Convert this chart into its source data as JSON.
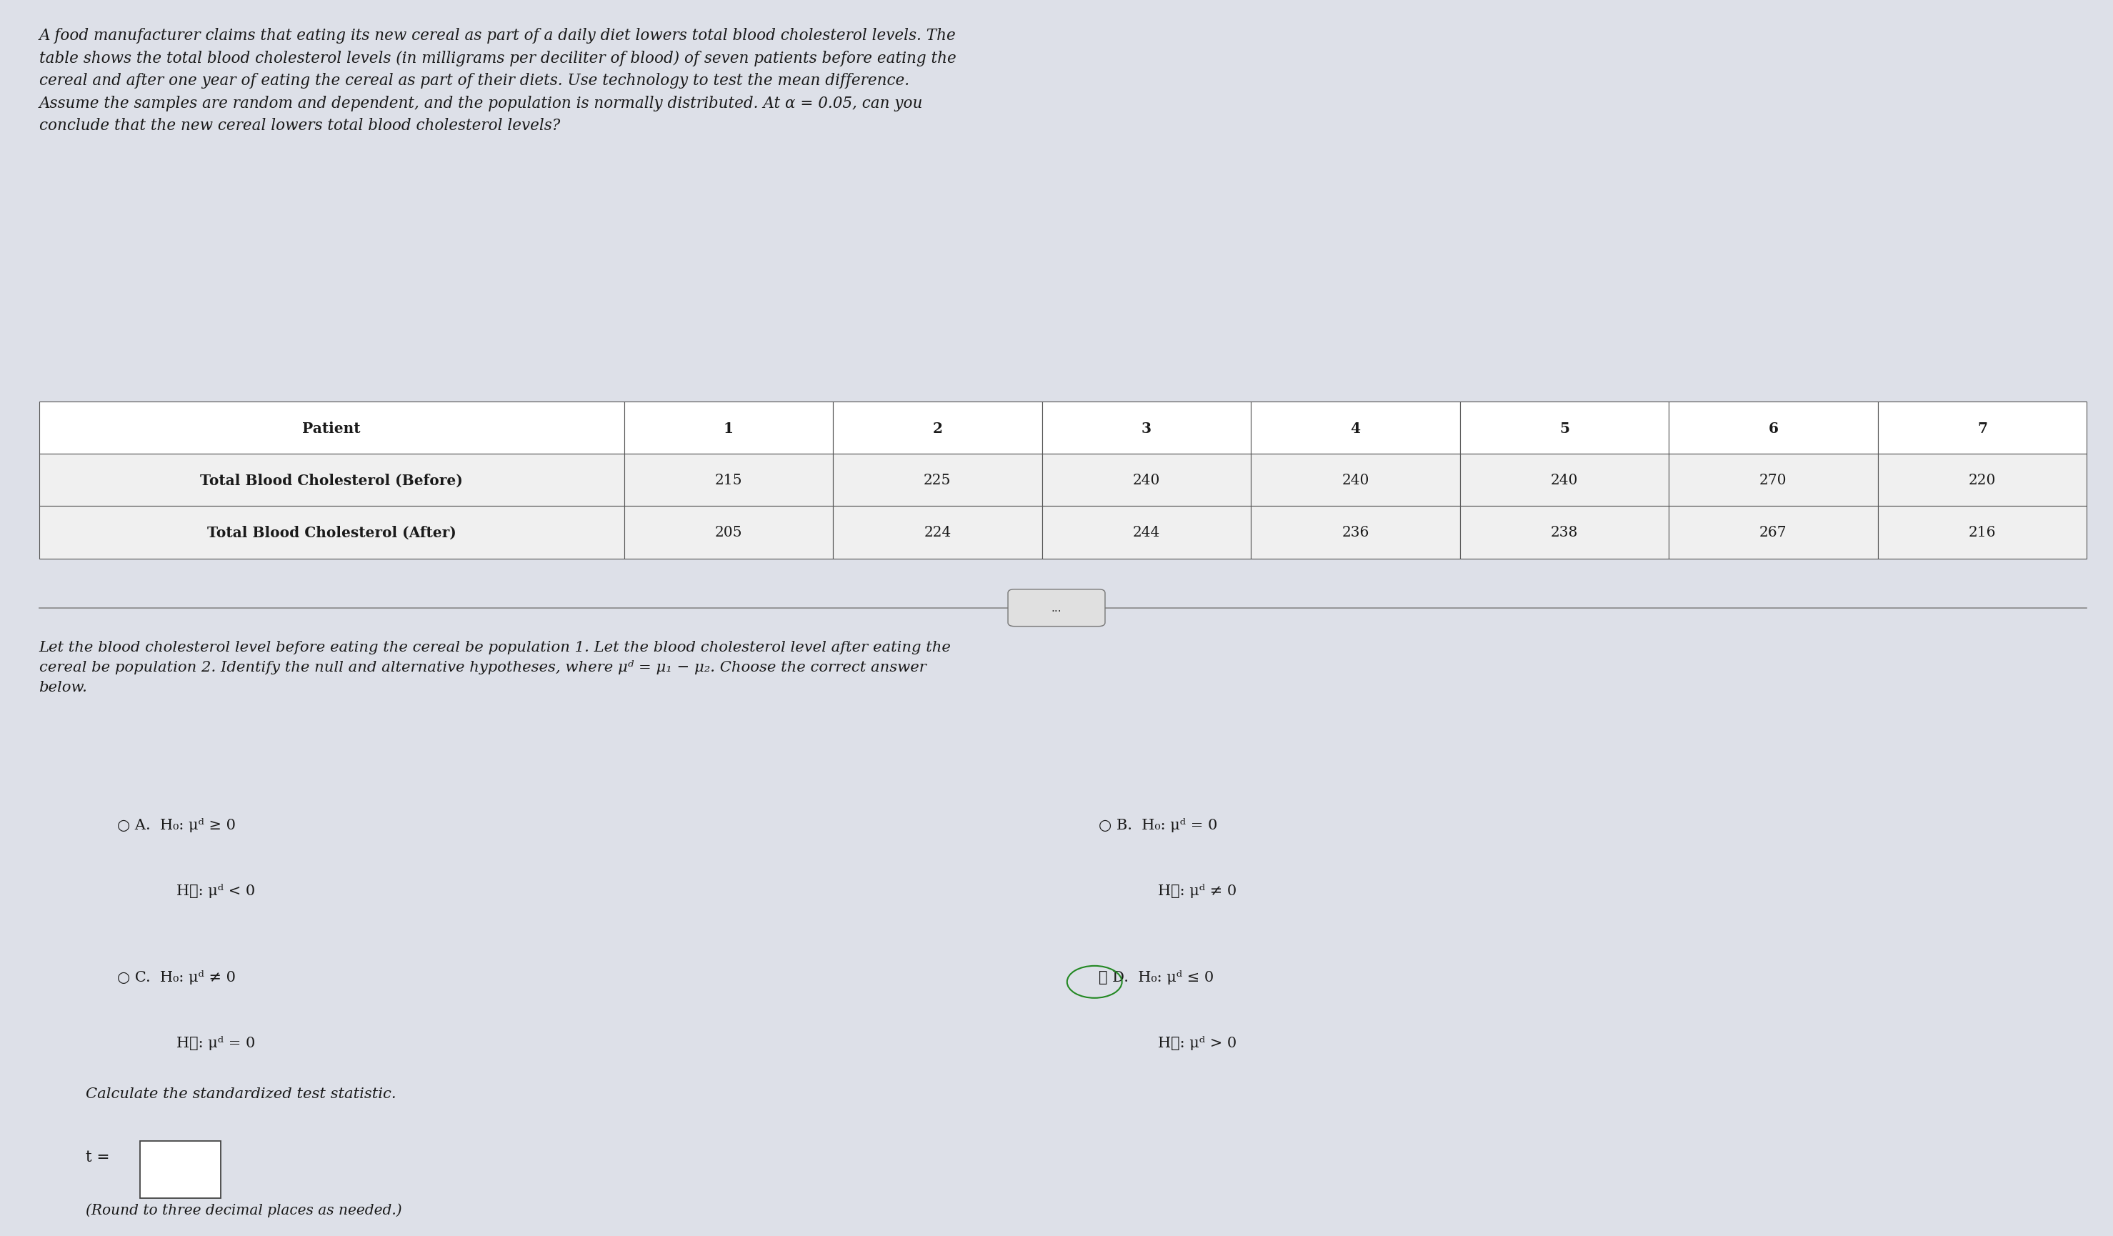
{
  "bg_color": "#dde0e8",
  "title_text": "A food manufacturer claims that eating its new cereal as part of a daily diet lowers total blood cholesterol levels. The\ntable shows the total blood cholesterol levels (in milligrams per deciliter of blood) of seven patients before eating the\ncereal and after one year of eating the cereal as part of their diets. Use technology to test the mean difference.\nAssume the samples are random and dependent, and the population is normally distributed. At α = 0.05, can you\nconclude that the new cereal lowers total blood cholesterol levels?",
  "table_headers": [
    "Patient",
    "1",
    "2",
    "3",
    "4",
    "5",
    "6",
    "7"
  ],
  "table_row1": [
    "Total Blood Cholesterol (Before)",
    "215",
    "225",
    "240",
    "240",
    "240",
    "270",
    "220"
  ],
  "table_row2": [
    "Total Blood Cholesterol (After)",
    "205",
    "224",
    "244",
    "236",
    "238",
    "267",
    "216"
  ],
  "middle_text": "Let the blood cholesterol level before eating the cereal be population 1. Let the blood cholesterol level after eating the\ncereal be population 2. Identify the null and alternative hypotheses, where μᵈ = μ₁ − μ₂. Choose the correct answer\nbelow.",
  "calc_text": "Calculate the standardized test statistic.",
  "round_text": "(Round to three decimal places as needed.)"
}
